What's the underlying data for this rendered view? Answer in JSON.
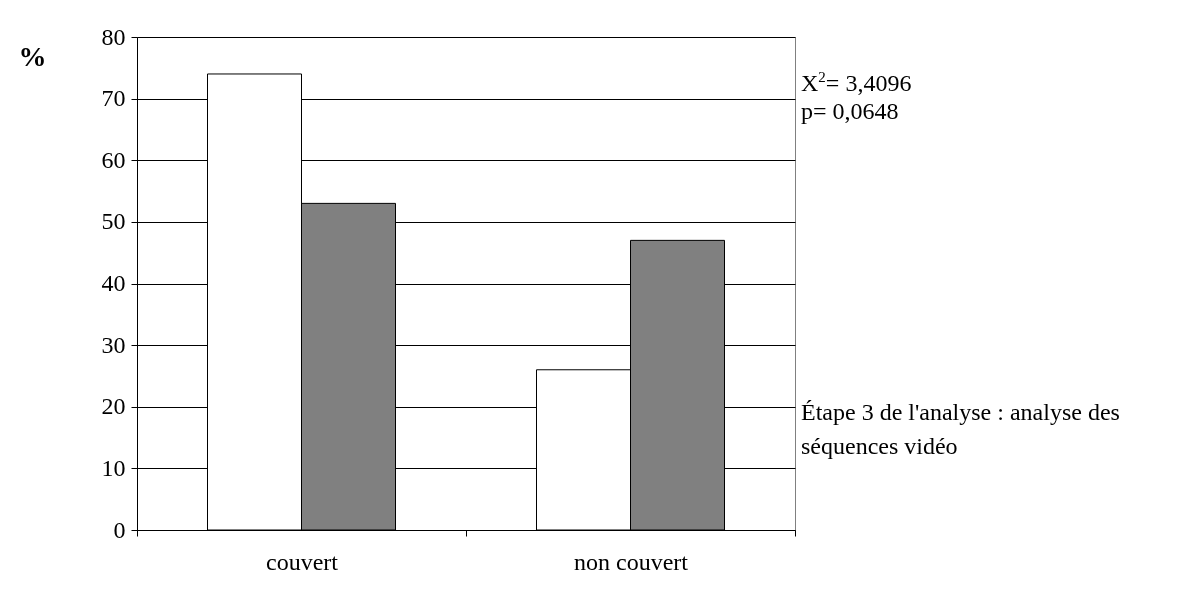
{
  "chart_data": {
    "type": "bar",
    "ylabel": "%",
    "categories": [
      "couvert",
      "non couvert"
    ],
    "series": [
      {
        "color": "#ffffff",
        "values": [
          74,
          26
        ]
      },
      {
        "color": "#808080",
        "values": [
          53,
          47
        ]
      }
    ],
    "ylim": [
      0,
      80
    ],
    "yticks": [
      0,
      10,
      20,
      30,
      40,
      50,
      60,
      70,
      80
    ],
    "grid": "y",
    "annotations": [
      "X$^{2}$= 3,4096",
      "p= 0,0648",
      "Étape 3 de l'analyse : analyse des séquences vidéo"
    ]
  }
}
